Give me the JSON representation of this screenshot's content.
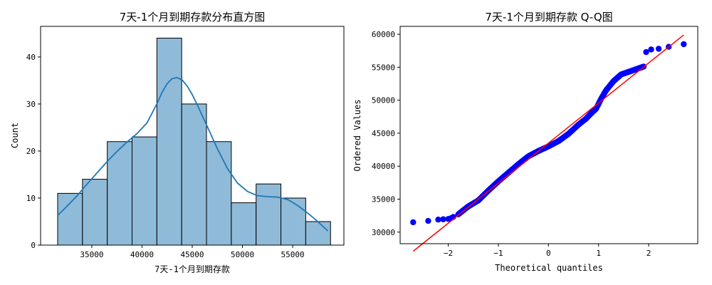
{
  "chart_data": [
    {
      "type": "bar",
      "title": "7天-1个月到期存款分布直方图",
      "xlabel": "7天-1个月到期存款",
      "ylabel": "Count",
      "xlim": [
        29900,
        60100
      ],
      "ylim": [
        0,
        46.5
      ],
      "xticks": [
        35000,
        40000,
        45000,
        50000,
        55000
      ],
      "xtick_labels": [
        "35000",
        "40000",
        "45000",
        "50000",
        "55000"
      ],
      "yticks": [
        0,
        10,
        20,
        30,
        40
      ],
      "ytick_labels": [
        "0",
        "10",
        "20",
        "30",
        "40"
      ],
      "bin_edges": [
        31600,
        34070,
        36540,
        39010,
        41480,
        43950,
        46420,
        48890,
        51360,
        53830,
        56300,
        58770
      ],
      "counts": [
        11,
        14,
        22,
        23,
        44,
        30,
        22,
        9,
        13,
        10,
        5
      ],
      "bar_color": "#8fbbd9",
      "kde": {
        "x": [
          31600,
          32500,
          33500,
          34500,
          35500,
          36500,
          37500,
          38500,
          39500,
          40500,
          41500,
          42000,
          42500,
          43000,
          43500,
          44000,
          44500,
          45000,
          45500,
          46500,
          47500,
          48500,
          49500,
          50500,
          51500,
          52500,
          53500,
          54500,
          55500,
          56500,
          57500,
          58500
        ],
        "y": [
          6.3,
          8.2,
          10.4,
          12.9,
          15.3,
          17.7,
          19.9,
          21.9,
          23.7,
          26.0,
          30.1,
          32.5,
          34.3,
          35.4,
          35.6,
          35.1,
          33.8,
          32.0,
          29.8,
          25.2,
          20.5,
          16.3,
          13.2,
          11.4,
          10.5,
          10.3,
          10.2,
          9.7,
          8.4,
          6.8,
          5.0,
          3.0
        ],
        "color": "#1f77b4"
      },
      "grid": false
    },
    {
      "type": "scatter",
      "title": "7天-1个月到期存款 Q-Q图",
      "xlabel": "Theoretical quantiles",
      "ylabel": "Ordered Values",
      "xlim": [
        -2.96,
        2.98
      ],
      "ylim": [
        28250,
        61200
      ],
      "xticks": [
        -2,
        -1,
        0,
        1,
        2
      ],
      "xtick_labels": [
        "−2",
        "−1",
        "0",
        "1",
        "2"
      ],
      "yticks": [
        30000,
        35000,
        40000,
        45000,
        50000,
        55000,
        60000
      ],
      "ytick_labels": [
        "30000",
        "35000",
        "40000",
        "45000",
        "50000",
        "55000",
        "60000"
      ],
      "point_color": "#0000ff",
      "line_color": "#ff0000",
      "fit_line": {
        "x": [
          -2.7,
          2.7
        ],
        "y": [
          27100,
          59900
        ]
      },
      "points_curve": {
        "x": [
          -1.8,
          -1.6,
          -1.4,
          -1.2,
          -1.0,
          -0.8,
          -0.6,
          -0.4,
          -0.2,
          0.0,
          0.2,
          0.4,
          0.6,
          0.75,
          0.85,
          0.95,
          1.05,
          1.15,
          1.3,
          1.45,
          1.6,
          1.75,
          1.9
        ],
        "y": [
          32700,
          33900,
          34800,
          36300,
          37700,
          39000,
          40300,
          41500,
          42300,
          43000,
          43800,
          44900,
          46300,
          47200,
          48000,
          48700,
          50200,
          51500,
          52900,
          53900,
          54300,
          54700,
          55100
        ]
      },
      "points_count": 200,
      "points_extra": {
        "x": [
          -2.7,
          -2.4,
          -2.2,
          -2.1,
          -2.0,
          -1.95,
          -1.9,
          1.95,
          2.05,
          2.2,
          2.4,
          2.7
        ],
        "y": [
          31500,
          31700,
          31900,
          31950,
          32000,
          32100,
          32300,
          57300,
          57700,
          57800,
          58100,
          58500
        ]
      },
      "grid": false
    }
  ]
}
